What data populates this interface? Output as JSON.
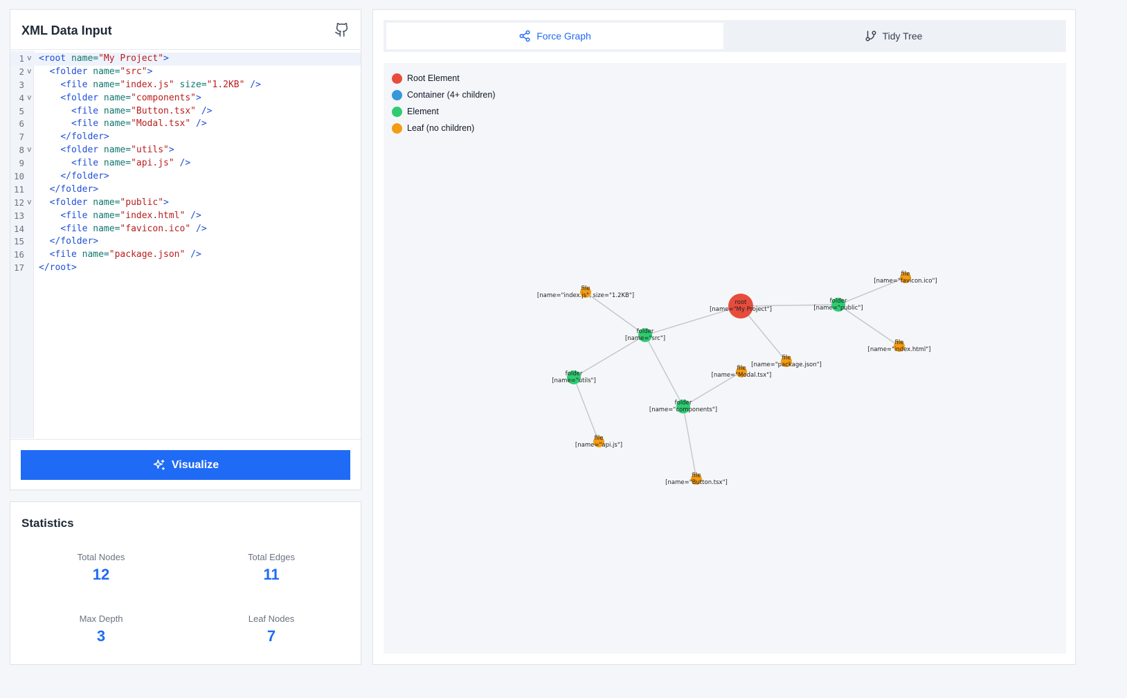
{
  "input_panel": {
    "title": "XML Data Input",
    "github_icon": "github-icon",
    "visualize_label": "Visualize",
    "visualize_icon": "sparkles-icon"
  },
  "editor": {
    "lines": [
      {
        "n": "1",
        "fold": true,
        "tokens": [
          [
            "tag",
            "<root"
          ],
          [
            "attr",
            " name="
          ],
          [
            "str",
            "\"My Project\""
          ],
          [
            "tag",
            ">"
          ]
        ]
      },
      {
        "n": "2",
        "fold": true,
        "tokens": [
          [
            "pun",
            "  "
          ],
          [
            "tag",
            "<folder"
          ],
          [
            "attr",
            " name="
          ],
          [
            "str",
            "\"src\""
          ],
          [
            "tag",
            ">"
          ]
        ]
      },
      {
        "n": "3",
        "fold": false,
        "tokens": [
          [
            "pun",
            "    "
          ],
          [
            "tag",
            "<file"
          ],
          [
            "attr",
            " name="
          ],
          [
            "str",
            "\"index.js\""
          ],
          [
            "attr",
            " size="
          ],
          [
            "str",
            "\"1.2KB\""
          ],
          [
            "tag",
            " />"
          ]
        ]
      },
      {
        "n": "4",
        "fold": true,
        "tokens": [
          [
            "pun",
            "    "
          ],
          [
            "tag",
            "<folder"
          ],
          [
            "attr",
            " name="
          ],
          [
            "str",
            "\"components\""
          ],
          [
            "tag",
            ">"
          ]
        ]
      },
      {
        "n": "5",
        "fold": false,
        "tokens": [
          [
            "pun",
            "      "
          ],
          [
            "tag",
            "<file"
          ],
          [
            "attr",
            " name="
          ],
          [
            "str",
            "\"Button.tsx\""
          ],
          [
            "tag",
            " />"
          ]
        ]
      },
      {
        "n": "6",
        "fold": false,
        "tokens": [
          [
            "pun",
            "      "
          ],
          [
            "tag",
            "<file"
          ],
          [
            "attr",
            " name="
          ],
          [
            "str",
            "\"Modal.tsx\""
          ],
          [
            "tag",
            " />"
          ]
        ]
      },
      {
        "n": "7",
        "fold": false,
        "tokens": [
          [
            "pun",
            "    "
          ],
          [
            "tag",
            "</folder>"
          ]
        ]
      },
      {
        "n": "8",
        "fold": true,
        "tokens": [
          [
            "pun",
            "    "
          ],
          [
            "tag",
            "<folder"
          ],
          [
            "attr",
            " name="
          ],
          [
            "str",
            "\"utils\""
          ],
          [
            "tag",
            ">"
          ]
        ]
      },
      {
        "n": "9",
        "fold": false,
        "tokens": [
          [
            "pun",
            "      "
          ],
          [
            "tag",
            "<file"
          ],
          [
            "attr",
            " name="
          ],
          [
            "str",
            "\"api.js\""
          ],
          [
            "tag",
            " />"
          ]
        ]
      },
      {
        "n": "10",
        "fold": false,
        "tokens": [
          [
            "pun",
            "    "
          ],
          [
            "tag",
            "</folder>"
          ]
        ]
      },
      {
        "n": "11",
        "fold": false,
        "tokens": [
          [
            "pun",
            "  "
          ],
          [
            "tag",
            "</folder>"
          ]
        ]
      },
      {
        "n": "12",
        "fold": true,
        "tokens": [
          [
            "pun",
            "  "
          ],
          [
            "tag",
            "<folder"
          ],
          [
            "attr",
            " name="
          ],
          [
            "str",
            "\"public\""
          ],
          [
            "tag",
            ">"
          ]
        ]
      },
      {
        "n": "13",
        "fold": false,
        "tokens": [
          [
            "pun",
            "    "
          ],
          [
            "tag",
            "<file"
          ],
          [
            "attr",
            " name="
          ],
          [
            "str",
            "\"index.html\""
          ],
          [
            "tag",
            " />"
          ]
        ]
      },
      {
        "n": "14",
        "fold": false,
        "tokens": [
          [
            "pun",
            "    "
          ],
          [
            "tag",
            "<file"
          ],
          [
            "attr",
            " name="
          ],
          [
            "str",
            "\"favicon.ico\""
          ],
          [
            "tag",
            " />"
          ]
        ]
      },
      {
        "n": "15",
        "fold": false,
        "tokens": [
          [
            "pun",
            "  "
          ],
          [
            "tag",
            "</folder>"
          ]
        ]
      },
      {
        "n": "16",
        "fold": false,
        "tokens": [
          [
            "pun",
            "  "
          ],
          [
            "tag",
            "<file"
          ],
          [
            "attr",
            " name="
          ],
          [
            "str",
            "\"package.json\""
          ],
          [
            "tag",
            " />"
          ]
        ]
      },
      {
        "n": "17",
        "fold": false,
        "tokens": [
          [
            "tag",
            "</root>"
          ]
        ]
      }
    ],
    "fold_glyph": "v"
  },
  "statistics": {
    "title": "Statistics",
    "total_nodes": {
      "label": "Total Nodes",
      "value": "12"
    },
    "total_edges": {
      "label": "Total Edges",
      "value": "11"
    },
    "max_depth": {
      "label": "Max Depth",
      "value": "3"
    },
    "leaf_nodes": {
      "label": "Leaf Nodes",
      "value": "7"
    }
  },
  "tabs": {
    "force_graph": {
      "label": "Force Graph",
      "icon": "share-nodes-icon"
    },
    "tidy_tree": {
      "label": "Tidy Tree",
      "icon": "git-branch-icon"
    }
  },
  "legend": [
    {
      "label": "Root Element",
      "color": "#e74c3c"
    },
    {
      "label": "Container (4+ children)",
      "color": "#3498db"
    },
    {
      "label": "Element",
      "color": "#2ecc71"
    },
    {
      "label": "Leaf (no children)",
      "color": "#f39c12"
    }
  ],
  "colors": {
    "accent": "#1f6bf5",
    "root": "#e74c3c",
    "container": "#3498db",
    "element": "#2ecc71",
    "leaf": "#f39c12",
    "edge": "#c2c5ca"
  },
  "graph": {
    "nodes": [
      {
        "id": "root",
        "kind": "root",
        "tag": "root",
        "attrs": "[name=\"My Project\"]"
      },
      {
        "id": "src",
        "kind": "element",
        "tag": "folder",
        "attrs": "[name=\"src\"]"
      },
      {
        "id": "indexjs",
        "kind": "leaf",
        "tag": "file",
        "attrs": "[name=\"index.js\", size=\"1.2KB\"]"
      },
      {
        "id": "components",
        "kind": "element",
        "tag": "folder",
        "attrs": "[name=\"components\"]"
      },
      {
        "id": "button",
        "kind": "leaf",
        "tag": "file",
        "attrs": "[name=\"Button.tsx\"]"
      },
      {
        "id": "modal",
        "kind": "leaf",
        "tag": "file",
        "attrs": "[name=\"Modal.tsx\"]"
      },
      {
        "id": "utils",
        "kind": "element",
        "tag": "folder",
        "attrs": "[name=\"utils\"]"
      },
      {
        "id": "apijs",
        "kind": "leaf",
        "tag": "file",
        "attrs": "[name=\"api.js\"]"
      },
      {
        "id": "public",
        "kind": "element",
        "tag": "folder",
        "attrs": "[name=\"public\"]"
      },
      {
        "id": "indexhtml",
        "kind": "leaf",
        "tag": "file",
        "attrs": "[name=\"index.html\"]"
      },
      {
        "id": "favicon",
        "kind": "leaf",
        "tag": "file",
        "attrs": "[name=\"favicon.ico\"]"
      },
      {
        "id": "package",
        "kind": "leaf",
        "tag": "file",
        "attrs": "[name=\"package.json\"]"
      }
    ],
    "links": [
      [
        "root",
        "src"
      ],
      [
        "root",
        "public"
      ],
      [
        "root",
        "package"
      ],
      [
        "src",
        "indexjs"
      ],
      [
        "src",
        "components"
      ],
      [
        "src",
        "utils"
      ],
      [
        "components",
        "button"
      ],
      [
        "components",
        "modal"
      ],
      [
        "utils",
        "apijs"
      ],
      [
        "public",
        "indexhtml"
      ],
      [
        "public",
        "favicon"
      ]
    ]
  }
}
